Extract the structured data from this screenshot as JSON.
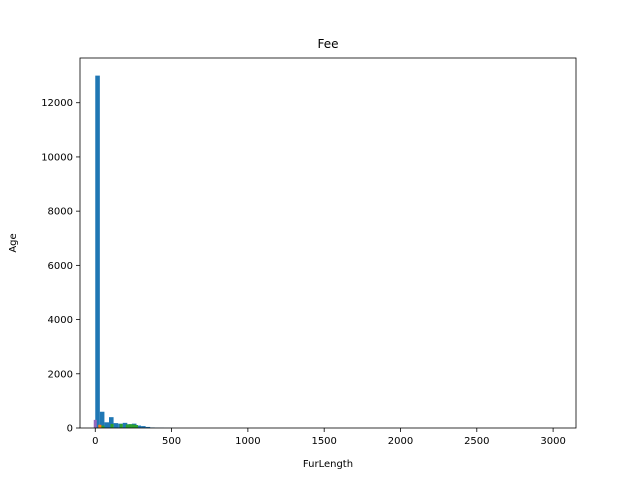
{
  "chart_data": {
    "type": "bar",
    "title": "Fee",
    "xlabel": "FurLength",
    "ylabel": "Age",
    "xlim": [
      -100,
      3150
    ],
    "ylim": [
      0,
      13650
    ],
    "xticks": [
      0,
      500,
      1000,
      1500,
      2000,
      2500,
      3000
    ],
    "yticks": [
      0,
      2000,
      4000,
      6000,
      8000,
      10000,
      12000
    ],
    "grid": false,
    "legend": "none",
    "series": [
      {
        "color": "#1f77b4",
        "bin_width": 30,
        "bins": [
          {
            "x": 0,
            "value": 13000
          },
          {
            "x": 30,
            "value": 600
          },
          {
            "x": 60,
            "value": 210
          },
          {
            "x": 90,
            "value": 400
          },
          {
            "x": 120,
            "value": 180
          },
          {
            "x": 150,
            "value": 160
          },
          {
            "x": 180,
            "value": 190
          },
          {
            "x": 210,
            "value": 140
          },
          {
            "x": 240,
            "value": 160
          },
          {
            "x": 270,
            "value": 90
          },
          {
            "x": 300,
            "value": 70
          },
          {
            "x": 330,
            "value": 40
          },
          {
            "x": 360,
            "value": 20
          },
          {
            "x": 390,
            "value": 10
          },
          {
            "x": 420,
            "value": 10
          },
          {
            "x": 450,
            "value": 5
          },
          {
            "x": 480,
            "value": 5
          }
        ]
      },
      {
        "color": "#2ca02c",
        "bin_width": 20,
        "bins": [
          {
            "x": 40,
            "value": 90
          },
          {
            "x": 100,
            "value": 150
          },
          {
            "x": 160,
            "value": 150
          },
          {
            "x": 200,
            "value": 130
          },
          {
            "x": 220,
            "value": 140
          },
          {
            "x": 240,
            "value": 130
          },
          {
            "x": 260,
            "value": 110
          }
        ]
      },
      {
        "color": "#ff7f0e",
        "bin_width": 20,
        "bins": [
          {
            "x": 20,
            "value": 120
          }
        ]
      },
      {
        "color": "#9467bd",
        "bin_width": 20,
        "bins": [
          {
            "x": -10,
            "value": 300
          }
        ]
      }
    ]
  }
}
